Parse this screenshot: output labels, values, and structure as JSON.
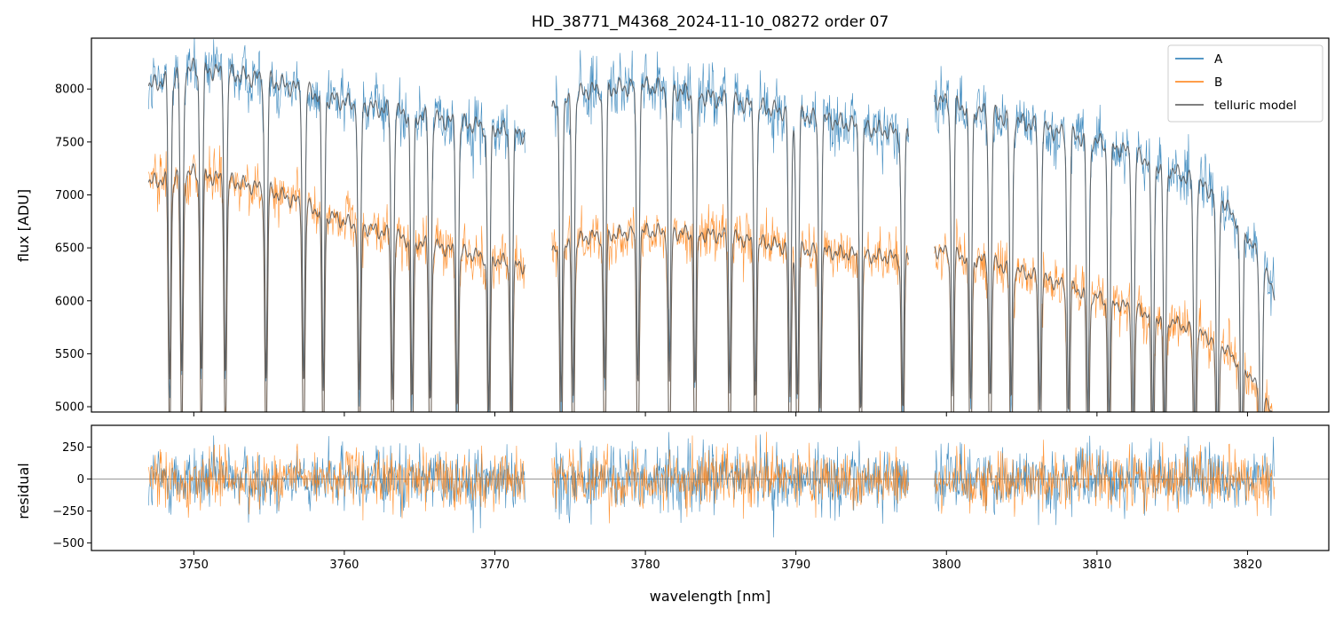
{
  "chart_data": [
    {
      "type": "line",
      "panel": "main",
      "title": "HD_38771_M4368_2024-11-10_08272  order 07",
      "xlabel": "",
      "ylabel": "flux [ADU]",
      "xlim": [
        3743.2,
        3825.4
      ],
      "ylim": [
        4950,
        8480
      ],
      "xticks": [
        3750,
        3760,
        3770,
        3780,
        3790,
        3800,
        3810,
        3820
      ],
      "yticks": [
        5000,
        5500,
        6000,
        6500,
        7000,
        7500,
        8000
      ],
      "ytick_labels": [
        "5000",
        "5500",
        "6000",
        "6500",
        "7000",
        "7500",
        "8000"
      ],
      "legend_position": "top-right",
      "segments": [
        [
          3747.0,
          3772.0
        ],
        [
          3773.8,
          3797.5
        ],
        [
          3799.2,
          3821.8
        ]
      ],
      "series": [
        {
          "name": "A",
          "color": "#1f77b4",
          "continuum_x": [
            3747.0,
            3750,
            3755,
            3760,
            3765,
            3770,
            3772.0,
            3773.8,
            3776,
            3780,
            3785,
            3790,
            3795,
            3797.5,
            3799.2,
            3803,
            3807,
            3811,
            3815,
            3818,
            3820,
            3821.8
          ],
          "continuum_y": [
            8120,
            8300,
            8180,
            7970,
            7840,
            7720,
            7660,
            7900,
            8080,
            8130,
            8000,
            7860,
            7720,
            7660,
            8000,
            7860,
            7700,
            7560,
            7320,
            7090,
            6700,
            6150
          ]
        },
        {
          "name": "B",
          "color": "#ff7f0e",
          "continuum_x": [
            3747.0,
            3750,
            3755,
            3760,
            3765,
            3770,
            3772.0,
            3773.8,
            3776,
            3780,
            3785,
            3790,
            3795,
            3797.5,
            3799.2,
            3803,
            3807,
            3811,
            3815,
            3818,
            3820,
            3821.8
          ],
          "continuum_y": [
            7200,
            7300,
            7130,
            6830,
            6630,
            6470,
            6400,
            6530,
            6680,
            6740,
            6700,
            6570,
            6500,
            6480,
            6560,
            6440,
            6260,
            6060,
            5880,
            5680,
            5400,
            4950
          ]
        },
        {
          "name": "telluric model",
          "color": "#555555"
        }
      ],
      "absorption_lines_nm": [
        3748.4,
        3749.2,
        3750.5,
        3752.1,
        3754.8,
        3757.3,
        3758.6,
        3761.0,
        3763.2,
        3764.5,
        3765.7,
        3767.5,
        3769.6,
        3771.1,
        3774.4,
        3775.2,
        3777.3,
        3779.5,
        3781.6,
        3783.3,
        3785.6,
        3787.3,
        3789.6,
        3790.1,
        3791.6,
        3794.3,
        3797.1,
        3800.4,
        3801.6,
        3802.9,
        3804.3,
        3806.2,
        3808.1,
        3809.4,
        3810.8,
        3812.4,
        3813.7,
        3814.5,
        3816.5,
        3818.0,
        3819.6,
        3820.9
      ]
    },
    {
      "type": "line",
      "panel": "residual",
      "xlabel": "wavelength [nm]",
      "ylabel": "residual",
      "xlim": [
        3743.2,
        3825.4
      ],
      "ylim": [
        -560,
        420
      ],
      "xticks": [
        3750,
        3760,
        3770,
        3780,
        3790,
        3800,
        3810,
        3820
      ],
      "xtick_labels": [
        "3750",
        "3760",
        "3770",
        "3780",
        "3790",
        "3800",
        "3810",
        "3820"
      ],
      "yticks": [
        -500,
        -250,
        0,
        250
      ],
      "ytick_labels": [
        "−500",
        "−250",
        "0",
        "250"
      ],
      "zero_line": true,
      "series": [
        {
          "name": "A",
          "color": "#1f77b4"
        },
        {
          "name": "B",
          "color": "#ff7f0e"
        }
      ]
    }
  ]
}
